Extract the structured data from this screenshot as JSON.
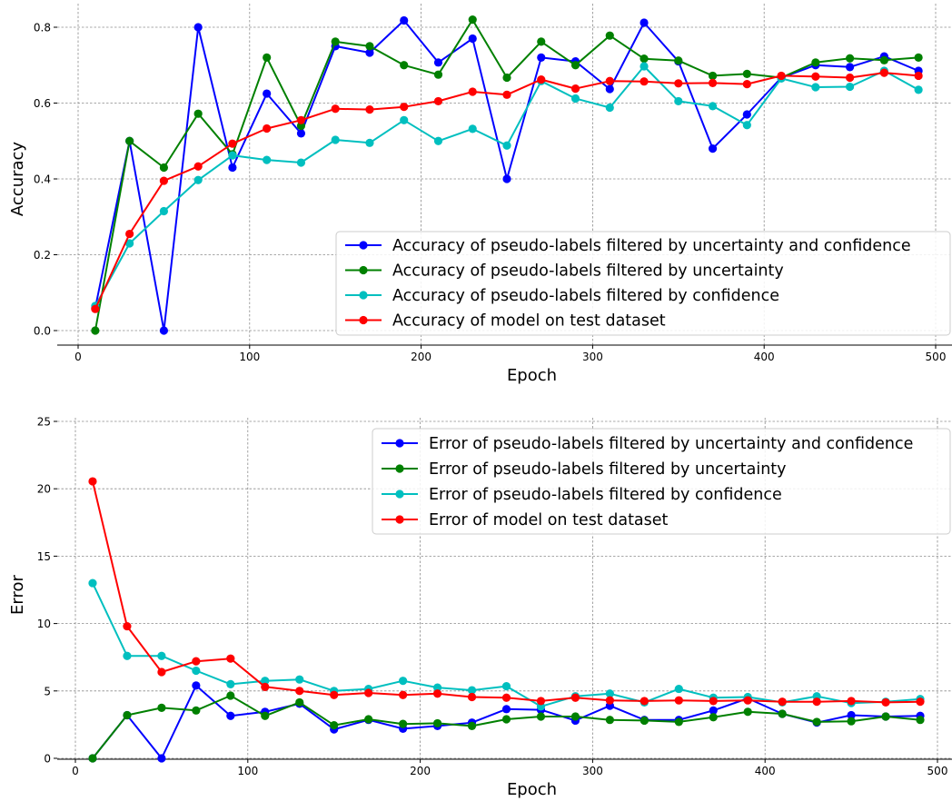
{
  "chart_data": [
    {
      "type": "line",
      "xlabel": "Epoch",
      "ylabel": "Accuracy",
      "xlim": [
        -15,
        510
      ],
      "ylim": [
        -0.04,
        0.86
      ],
      "xticks": [
        0,
        100,
        200,
        300,
        400,
        500
      ],
      "xtick_labels": [
        "0",
        "100",
        "200",
        "300",
        "400",
        "500"
      ],
      "yticks": [
        0.0,
        0.2,
        0.4,
        0.6,
        0.8
      ],
      "ytick_labels": [
        "0.0",
        "0.2",
        "0.4",
        "0.6",
        "0.8"
      ],
      "grid": true,
      "legend_position": "lower-right",
      "x": [
        10,
        30,
        50,
        70,
        90,
        110,
        130,
        150,
        170,
        190,
        210,
        230,
        250,
        270,
        290,
        310,
        330,
        350,
        370,
        390,
        410,
        430,
        450,
        470,
        490
      ],
      "series": [
        {
          "name": "Accuracy of pseudo-labels filtered by uncertainty and confidence",
          "color": "#0000ff",
          "values": [
            0.06,
            0.5,
            0.0,
            0.8,
            0.43,
            0.625,
            0.52,
            0.75,
            0.733,
            0.818,
            0.707,
            0.77,
            0.4,
            0.72,
            0.71,
            0.637,
            0.812,
            0.71,
            0.48,
            0.57,
            0.667,
            0.7,
            0.695,
            0.723,
            0.685
          ]
        },
        {
          "name": "Accuracy of pseudo-labels filtered by uncertainty",
          "color": "#008000",
          "values": [
            0.0,
            0.5,
            0.43,
            0.572,
            0.465,
            0.72,
            0.54,
            0.762,
            0.75,
            0.7,
            0.675,
            0.82,
            0.667,
            0.762,
            0.7,
            0.778,
            0.717,
            0.712,
            0.672,
            0.677,
            0.667,
            0.707,
            0.718,
            0.713,
            0.72
          ]
        },
        {
          "name": "Accuracy of pseudo-labels filtered by confidence",
          "color": "#00bfbf",
          "values": [
            0.065,
            0.23,
            0.315,
            0.397,
            0.462,
            0.45,
            0.443,
            0.503,
            0.495,
            0.555,
            0.5,
            0.532,
            0.488,
            0.658,
            0.612,
            0.588,
            0.697,
            0.605,
            0.592,
            0.542,
            0.665,
            0.642,
            0.643,
            0.685,
            0.635
          ]
        },
        {
          "name": "Accuracy of model on test dataset",
          "color": "#ff0000",
          "values": [
            0.057,
            0.255,
            0.395,
            0.433,
            0.493,
            0.533,
            0.555,
            0.585,
            0.583,
            0.59,
            0.605,
            0.63,
            0.622,
            0.662,
            0.638,
            0.658,
            0.657,
            0.652,
            0.653,
            0.65,
            0.672,
            0.67,
            0.667,
            0.68,
            0.672
          ]
        }
      ]
    },
    {
      "type": "line",
      "xlabel": "Epoch",
      "ylabel": "Error",
      "xlim": [
        -15,
        510
      ],
      "ylim": [
        0,
        25
      ],
      "xticks": [
        0,
        100,
        200,
        300,
        400,
        500
      ],
      "xtick_labels": [
        "0",
        "100",
        "200",
        "300",
        "400",
        "500"
      ],
      "yticks": [
        0,
        5,
        10,
        15,
        20,
        25
      ],
      "ytick_labels": [
        "0",
        "5",
        "10",
        "15",
        "20",
        "25"
      ],
      "grid": true,
      "legend_position": "upper-right",
      "x": [
        10,
        30,
        50,
        70,
        90,
        110,
        130,
        150,
        170,
        190,
        210,
        230,
        250,
        270,
        290,
        310,
        330,
        350,
        370,
        390,
        410,
        430,
        450,
        470,
        490
      ],
      "series": [
        {
          "name": "Error of pseudo-labels filtered by uncertainty and confidence",
          "color": "#0000ff",
          "values": [
            0.0,
            3.2,
            0.0,
            5.4,
            3.15,
            3.45,
            4.05,
            2.15,
            2.85,
            2.2,
            2.4,
            2.65,
            3.65,
            3.6,
            2.8,
            3.9,
            2.85,
            2.85,
            3.55,
            4.45,
            3.3,
            2.65,
            3.2,
            3.1,
            3.15
          ]
        },
        {
          "name": "Error of pseudo-labels filtered by uncertainty",
          "color": "#008000",
          "values": [
            0.0,
            3.2,
            3.75,
            3.55,
            4.65,
            3.15,
            4.15,
            2.45,
            2.9,
            2.55,
            2.6,
            2.4,
            2.9,
            3.1,
            3.1,
            2.85,
            2.8,
            2.7,
            3.05,
            3.45,
            3.3,
            2.7,
            2.75,
            3.1,
            2.85
          ]
        },
        {
          "name": "Error of pseudo-labels filtered by confidence",
          "color": "#00bfbf",
          "values": [
            13.0,
            7.6,
            7.6,
            6.5,
            5.5,
            5.75,
            5.85,
            5.0,
            5.15,
            5.75,
            5.25,
            5.05,
            5.35,
            3.85,
            4.6,
            4.8,
            4.15,
            5.15,
            4.5,
            4.55,
            4.15,
            4.6,
            4.1,
            4.2,
            4.4
          ]
        },
        {
          "name": "Error of model on test dataset",
          "color": "#ff0000",
          "values": [
            20.55,
            9.8,
            6.4,
            7.2,
            7.4,
            5.3,
            5.0,
            4.7,
            4.85,
            4.7,
            4.8,
            4.55,
            4.5,
            4.25,
            4.5,
            4.3,
            4.25,
            4.3,
            4.25,
            4.3,
            4.2,
            4.2,
            4.25,
            4.15,
            4.2
          ]
        }
      ]
    }
  ]
}
